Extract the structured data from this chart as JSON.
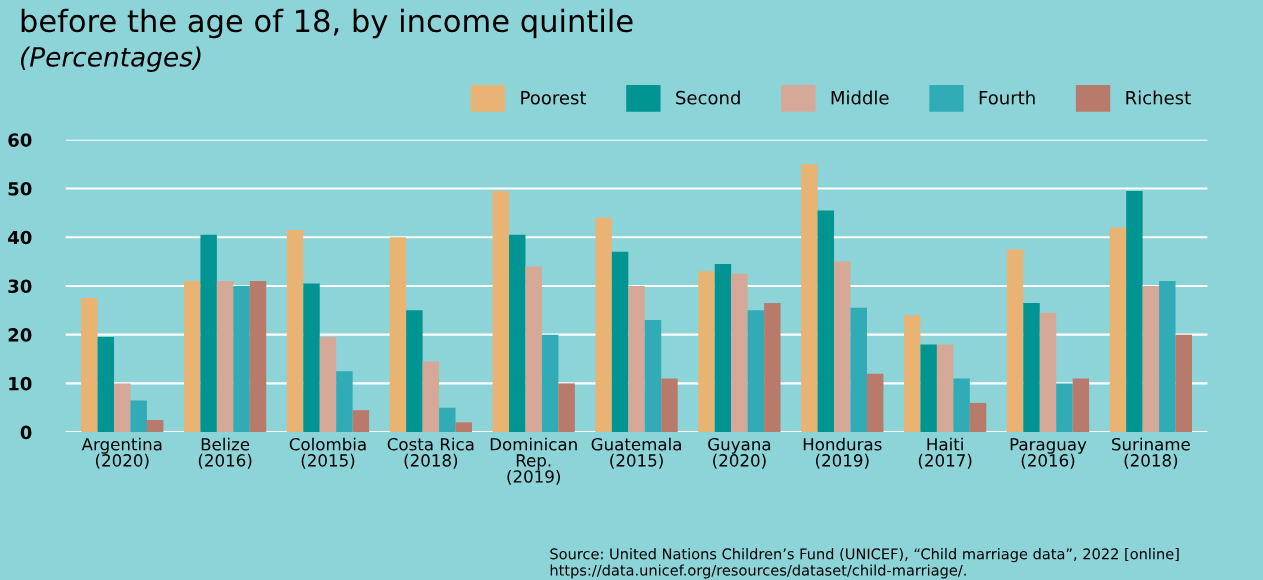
{
  "chart_data": {
    "type": "bar",
    "title": "before the age of 18, by income quintile",
    "subtitle": "(Percentages)",
    "categories": [
      "Argentina\n(2020)",
      "Belize\n(2016)",
      "Colombia\n(2015)",
      "Costa Rica\n(2018)",
      "Dominican\nRep.\n(2019)",
      "Guatemala\n(2015)",
      "Guyana\n(2020)",
      "Honduras\n(2019)",
      "Haiti\n(2017)",
      "Paraguay\n(2016)",
      "Suriname\n(2018)"
    ],
    "series": [
      {
        "name": "Poorest",
        "color": "#e8b373",
        "values": [
          27.5,
          31,
          41.5,
          40,
          49.5,
          44,
          33,
          55,
          24,
          37.5,
          42
        ]
      },
      {
        "name": "Second",
        "color": "#009593",
        "values": [
          19.5,
          40.5,
          30.5,
          25,
          40.5,
          37,
          34.5,
          45.5,
          18,
          26.5,
          49.5
        ]
      },
      {
        "name": "Middle",
        "color": "#d6a898",
        "values": [
          10,
          31,
          19.5,
          14.5,
          34,
          30,
          32.5,
          35,
          18,
          24.5,
          30
        ]
      },
      {
        "name": "Fourth",
        "color": "#31abb5",
        "values": [
          6.5,
          30,
          12.5,
          5,
          20,
          23,
          25,
          25.5,
          11,
          10,
          31
        ]
      },
      {
        "name": "Richest",
        "color": "#b87a6a",
        "values": [
          2.5,
          31,
          4.5,
          2,
          10,
          11,
          26.5,
          12,
          6,
          11,
          20
        ]
      }
    ],
    "ylim": [
      0,
      60
    ],
    "yticks": [
      0,
      10,
      20,
      30,
      40,
      50,
      60
    ],
    "grid": "y",
    "legend": "top right",
    "annotations": [
      "Source: United Nations Children’s Fund (UNICEF), “Child marriage data”, 2022 [online] https://data.unicef.org/resources/dataset/child-marriage/."
    ]
  }
}
